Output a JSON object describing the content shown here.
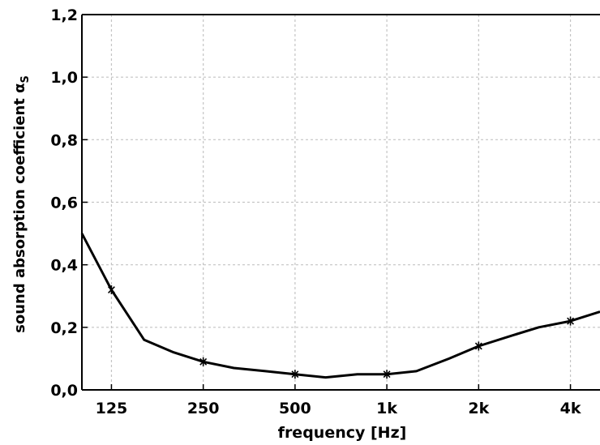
{
  "chart_data": {
    "type": "line",
    "xlabel": "frequency [Hz]",
    "ylabel": "sound absorption coefficient α",
    "ylabel_subscript": "S",
    "xscale": "log",
    "xlim": [
      100,
      5000
    ],
    "ylim": [
      0,
      1.2
    ],
    "grid": true,
    "legend": "none",
    "x_ticks": [
      125,
      250,
      500,
      1000,
      2000,
      4000
    ],
    "x_tick_labels": [
      "125",
      "250",
      "500",
      "1k",
      "2k",
      "4k"
    ],
    "y_ticks": [
      0,
      0.2,
      0.4,
      0.6,
      0.8,
      1.0,
      1.2
    ],
    "y_tick_labels": [
      "0,0",
      "0,2",
      "0,4",
      "0,6",
      "0,8",
      "1,0",
      "1,2"
    ],
    "series": [
      {
        "color": "#000000",
        "x": [
          100,
          125,
          160,
          200,
          250,
          315,
          400,
          500,
          630,
          800,
          1000,
          1250,
          1600,
          2000,
          2500,
          3150,
          4000,
          5000
        ],
        "values": [
          0.5,
          0.32,
          0.16,
          0.12,
          0.09,
          0.07,
          0.06,
          0.05,
          0.04,
          0.05,
          0.05,
          0.06,
          0.1,
          0.14,
          0.17,
          0.2,
          0.22,
          0.25
        ]
      }
    ],
    "markers": {
      "symbol": "asterisk",
      "x": [
        125,
        250,
        500,
        1000,
        2000,
        4000
      ],
      "values": [
        0.32,
        0.09,
        0.05,
        0.05,
        0.14,
        0.22
      ]
    }
  }
}
